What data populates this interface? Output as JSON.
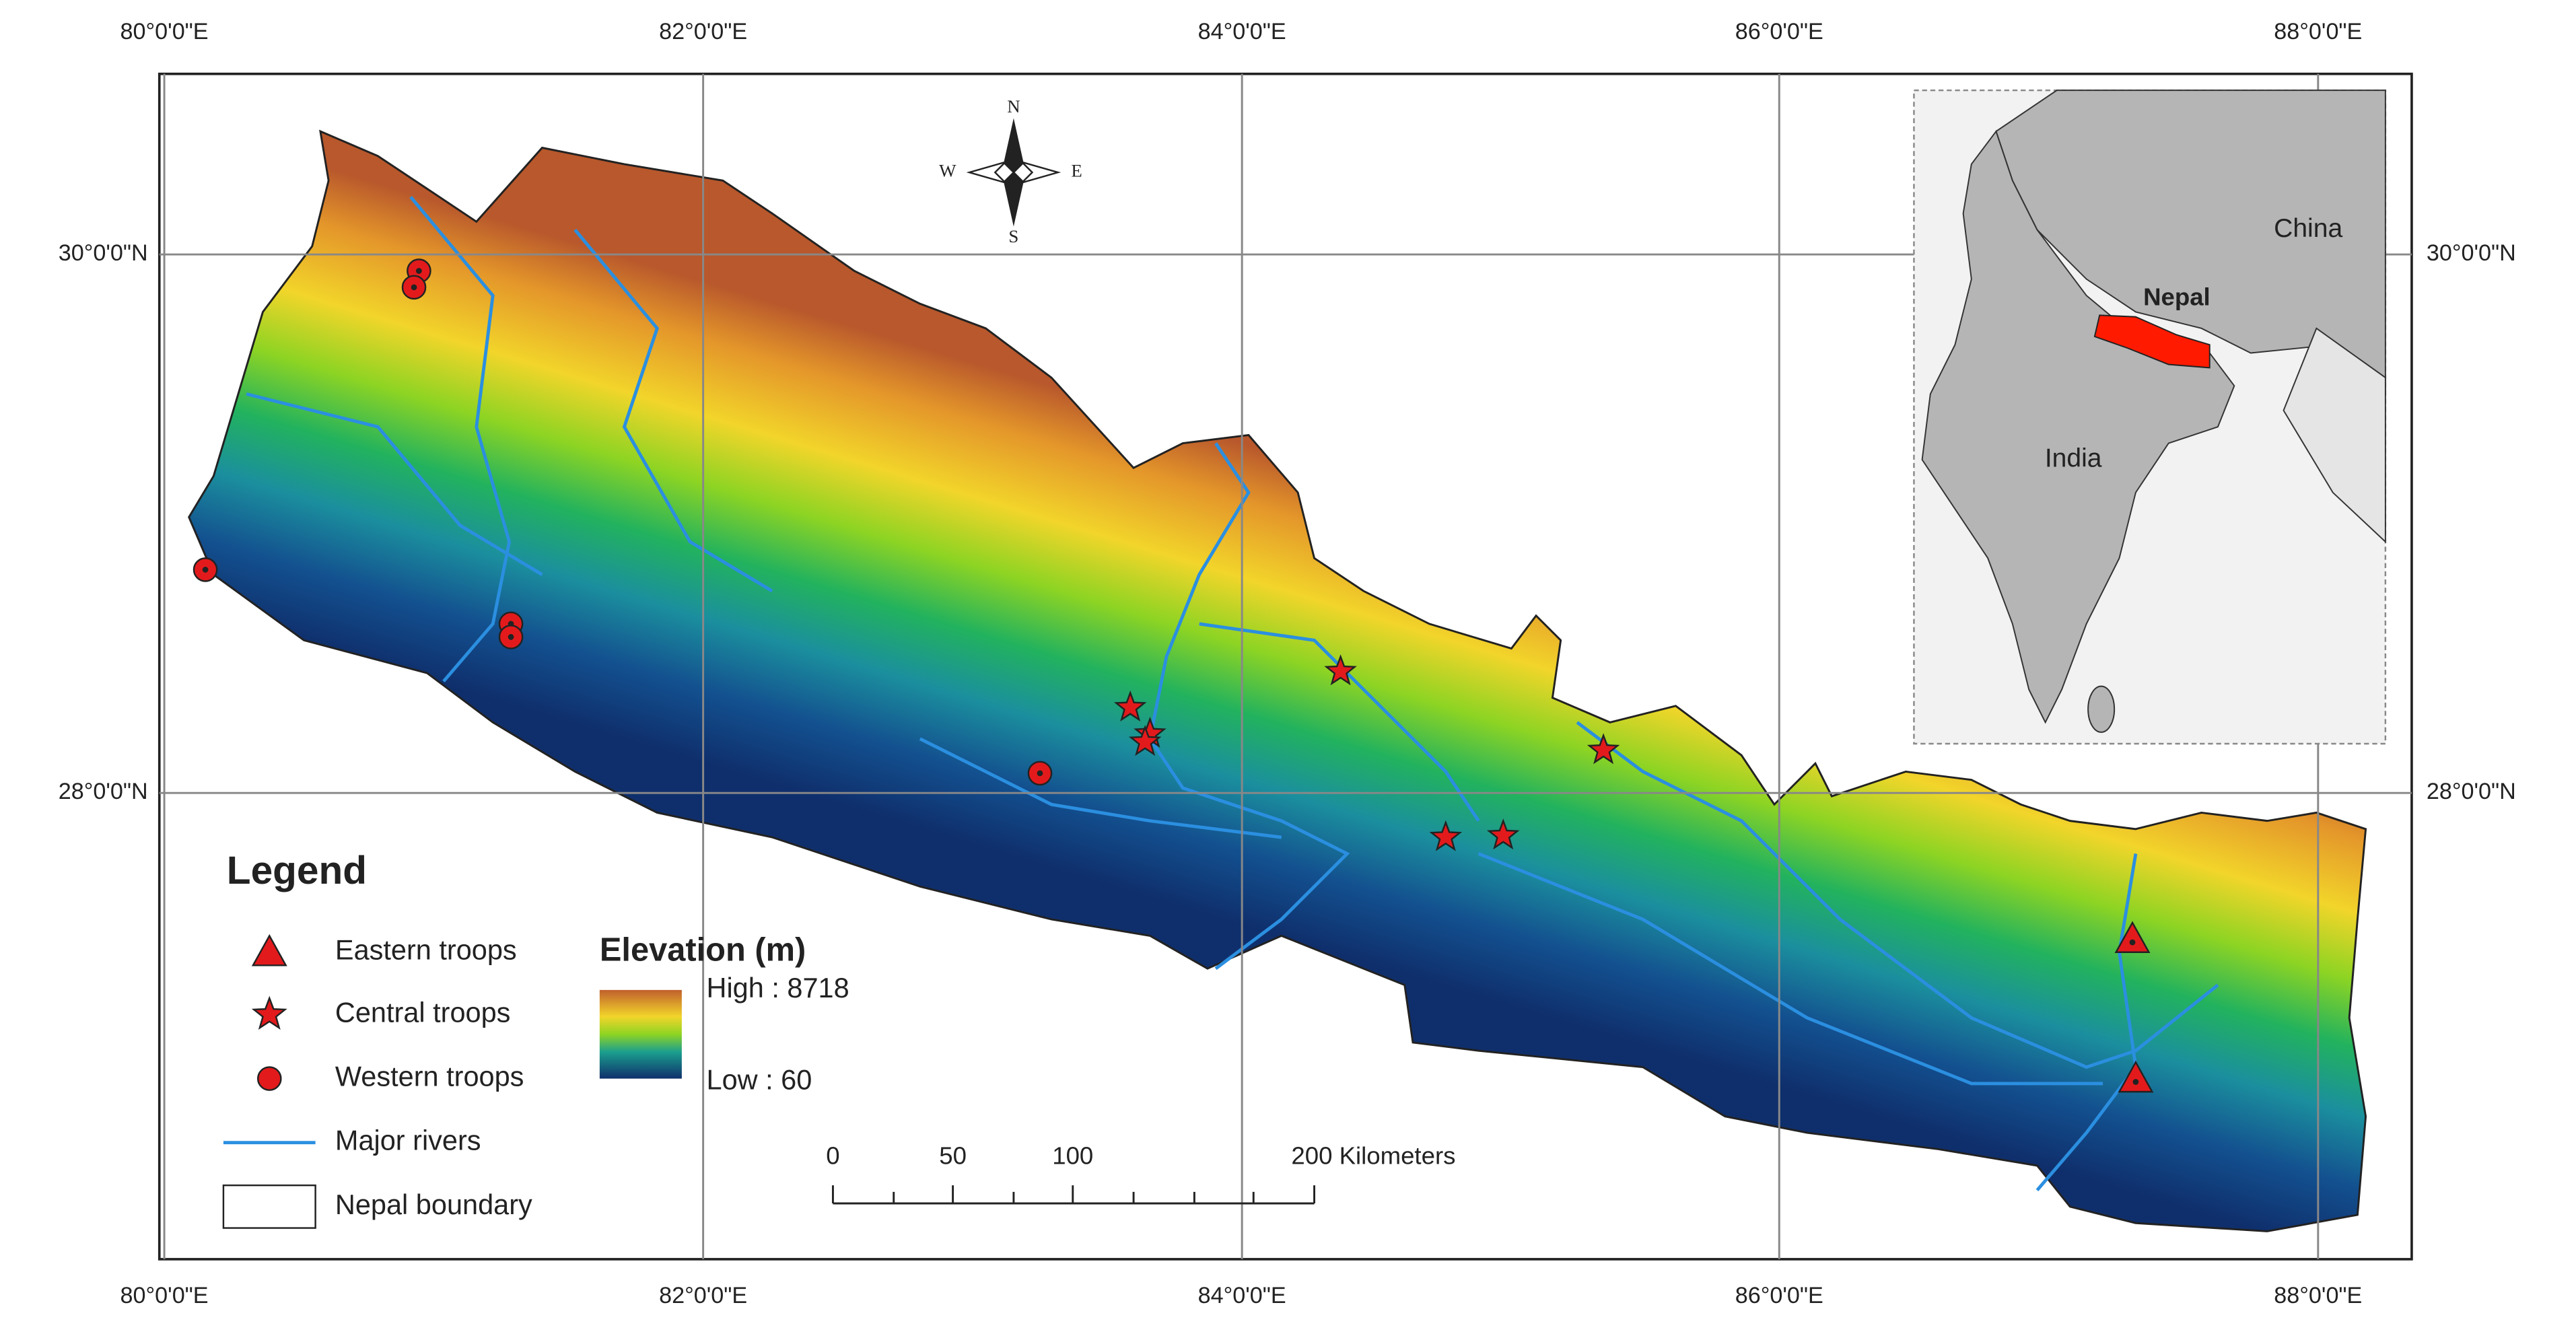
{
  "graticule": {
    "top_labels": [
      "80°0'0\"E",
      "82°0'0\"E",
      "84°0'0\"E",
      "86°0'0\"E",
      "88°0'0\"E"
    ],
    "bottom_labels": [
      "80°0'0\"E",
      "82°0'0\"E",
      "84°0'0\"E",
      "86°0'0\"E",
      "88°0'0\"E"
    ],
    "left_labels": [
      "30°0'0\"N",
      "28°0'0\"N"
    ],
    "right_labels": [
      "30°0'0\"N",
      "28°0'0\"N"
    ]
  },
  "compass": {
    "n": "N",
    "s": "S",
    "e": "E",
    "w": "W"
  },
  "inset": {
    "labels": [
      "China",
      "Nepal",
      "India"
    ]
  },
  "legend": {
    "title": "Legend",
    "items": [
      "Eastern troops",
      "Central troops",
      "Western troops",
      "Major rivers",
      "Nepal boundary"
    ],
    "elevation": {
      "title": "Elevation (m)",
      "high": "High : 8718",
      "low": "Low : 60"
    }
  },
  "scale_bar": {
    "labels": [
      "0",
      "50",
      "100",
      "200 Kilometers"
    ]
  }
}
